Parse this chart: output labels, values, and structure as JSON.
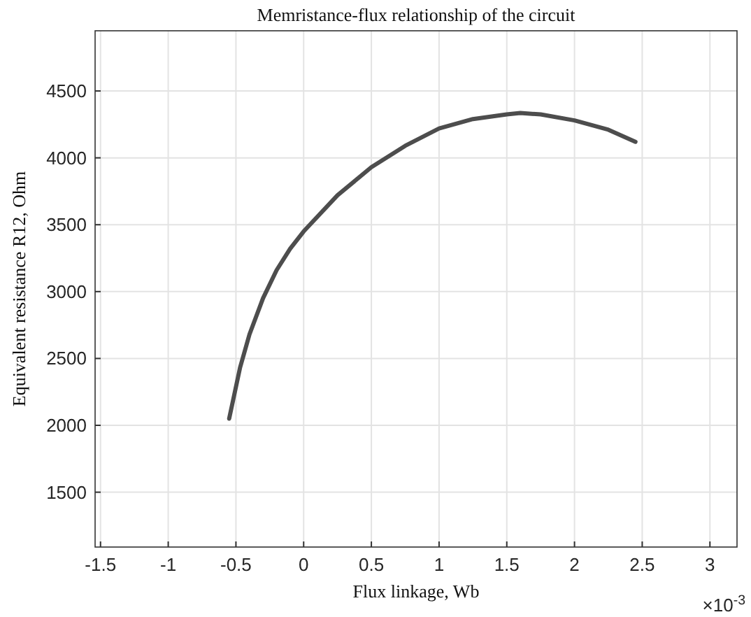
{
  "chart_data": {
    "type": "line",
    "title": "Memristance-flux relationship of the circuit",
    "xlabel": "Flux linkage, Wb",
    "ylabel": "Equivalent resistance R12, Ohm",
    "annotations": [
      "×10$^{-3}$"
    ],
    "series": [
      {
        "color": "#4d4d4d",
        "x": [
          -0.55,
          -0.47,
          -0.4,
          -0.3,
          -0.2,
          -0.1,
          0,
          0.25,
          0.5,
          0.75,
          1.0,
          1.25,
          1.5,
          1.6,
          1.75,
          2.0,
          2.25,
          2.45
        ],
        "values": [
          2050,
          2430,
          2680,
          2950,
          3160,
          3320,
          3450,
          3720,
          3930,
          4090,
          4220,
          4290,
          4325,
          4335,
          4325,
          4280,
          4210,
          4120
        ]
      }
    ],
    "xlim": [
      -1.54,
      3.2
    ],
    "xticks": [
      -1.5,
      -1,
      -0.5,
      0,
      0.5,
      1,
      1.5,
      2,
      2.5,
      3
    ],
    "ylim": [
      1090,
      4950
    ],
    "yticks": [
      1500,
      2000,
      2500,
      3000,
      3500,
      4000,
      4500
    ],
    "grid": true,
    "line_style": "solid",
    "marker": "none"
  }
}
